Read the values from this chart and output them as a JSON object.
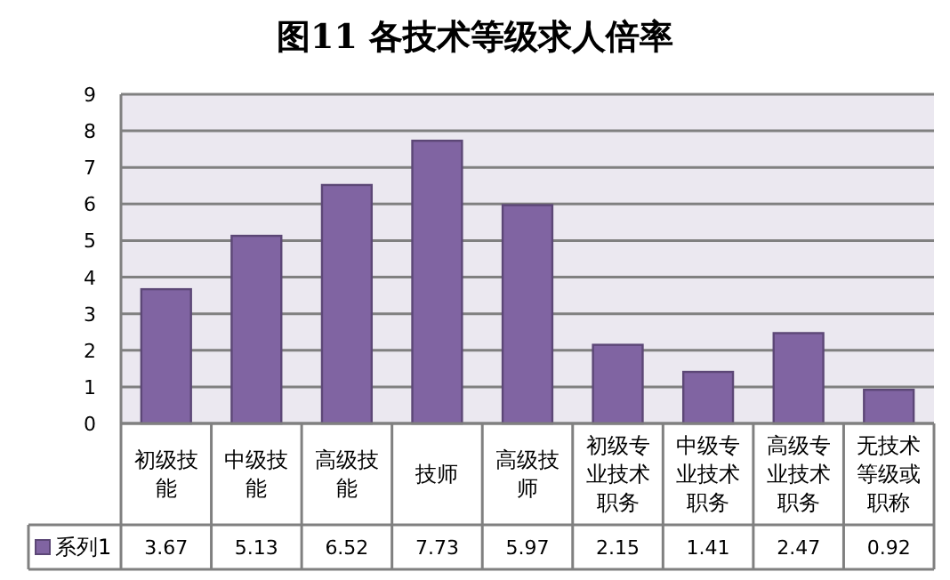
{
  "chart_data": {
    "type": "bar",
    "title": "图11 各技术等级求人倍率",
    "categories": [
      "初级技能",
      "中级技能",
      "高级技能",
      "技师",
      "高级技师",
      "初级专业技术职务",
      "中级专业技术职务",
      "高级专业技术职务",
      "无技术等级或职称"
    ],
    "series": [
      {
        "name": "系列1",
        "color": "#8064a2",
        "values": [
          3.67,
          5.13,
          6.52,
          7.73,
          5.97,
          2.15,
          1.41,
          2.47,
          0.92
        ]
      }
    ],
    "ylim": [
      0,
      9
    ],
    "yticks": [
      0,
      1,
      2,
      3,
      4,
      5,
      6,
      7,
      8,
      9
    ],
    "grid": "y",
    "legend": "bottom",
    "data_labels": true
  }
}
